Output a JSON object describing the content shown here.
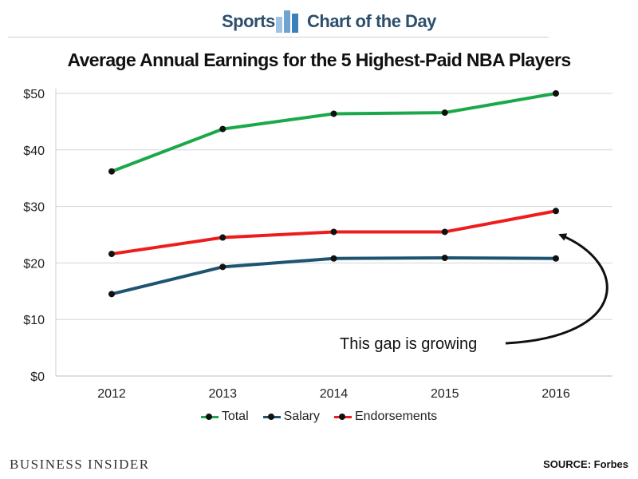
{
  "header": {
    "left_text": "Sports",
    "right_text": "Chart of the Day",
    "logo_icon": "bar-chart-icon"
  },
  "chart_data": {
    "type": "line",
    "title": "Average Annual Earnings for the 5 Highest-Paid NBA Players",
    "xlabel": "",
    "ylabel": "",
    "categories": [
      "2012",
      "2013",
      "2014",
      "2015",
      "2016"
    ],
    "ylim": [
      0,
      50
    ],
    "yticks": [
      0,
      10,
      20,
      30,
      40,
      50
    ],
    "ytick_labels": [
      "$0",
      "$10",
      "$20",
      "$30",
      "$40",
      "$50"
    ],
    "grid": true,
    "legend_position": "bottom",
    "series": [
      {
        "name": "Total",
        "color": "#1aa84a",
        "values": [
          36.2,
          43.7,
          46.4,
          46.6,
          50.0
        ]
      },
      {
        "name": "Salary",
        "color": "#1f5470",
        "values": [
          14.5,
          19.3,
          20.8,
          20.9,
          20.8
        ]
      },
      {
        "name": "Endorsements",
        "color": "#ee1c1c",
        "values": [
          21.6,
          24.5,
          25.5,
          25.5,
          29.2
        ]
      }
    ],
    "annotation": {
      "text": "This gap is growing"
    }
  },
  "footer": {
    "brand": "BUSINESS INSIDER",
    "source": "SOURCE: Forbes"
  }
}
